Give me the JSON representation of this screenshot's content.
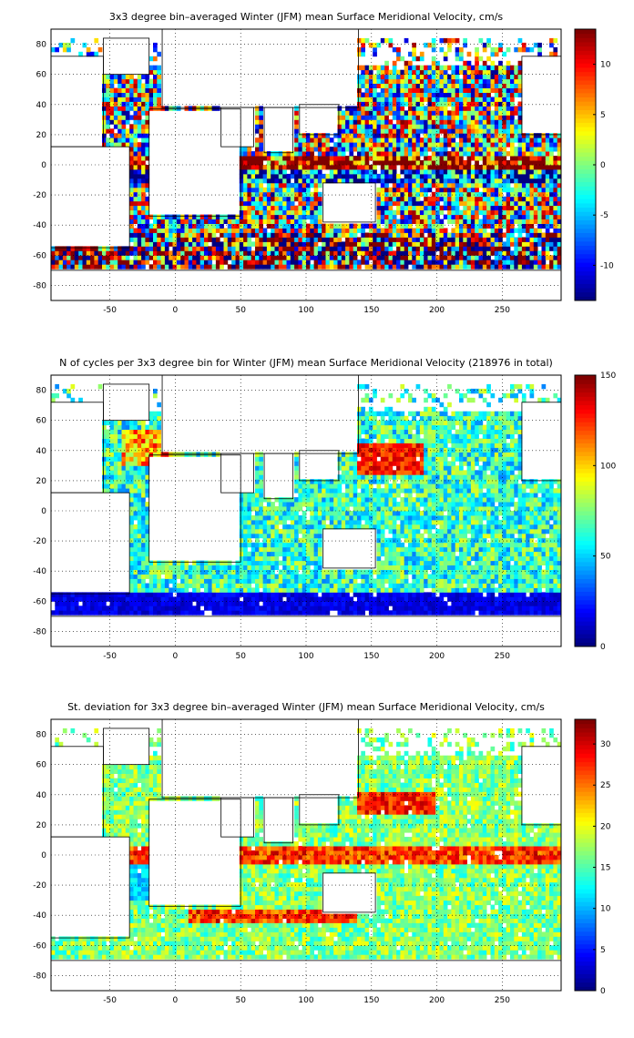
{
  "chart_data": [
    {
      "type": "heatmap",
      "title": "3x3 degree bin–averaged Winter (JFM) mean Surface Meridional Velocity, cm/s",
      "xlim": [
        -95,
        295
      ],
      "ylim": [
        -90,
        90
      ],
      "xticks": [
        -50,
        0,
        50,
        100,
        150,
        200,
        250
      ],
      "yticks": [
        -80,
        -60,
        -40,
        -20,
        0,
        20,
        40,
        60,
        80
      ],
      "colorbar": {
        "range": [
          -13.5,
          13.5
        ],
        "ticks": [
          -10,
          -5,
          0,
          5,
          10
        ],
        "colormap": "jet"
      },
      "grid": true,
      "bin_degrees": 3
    },
    {
      "type": "heatmap",
      "title": "N of cycles per 3x3 degree bin for Winter (JFM) mean Surface Meridional Velocity (218976 in total)",
      "xlim": [
        -95,
        295
      ],
      "ylim": [
        -90,
        90
      ],
      "xticks": [
        -50,
        0,
        50,
        100,
        150,
        200,
        250
      ],
      "yticks": [
        -80,
        -60,
        -40,
        -20,
        0,
        20,
        40,
        60,
        80
      ],
      "colorbar": {
        "range": [
          0,
          150
        ],
        "ticks": [
          0,
          50,
          100,
          150
        ],
        "colormap": "jet"
      },
      "grid": true,
      "bin_degrees": 3
    },
    {
      "type": "heatmap",
      "title": "St. deviation for 3x3 degree bin–averaged Winter (JFM) mean Surface Meridional Velocity, cm/s",
      "xlim": [
        -95,
        295
      ],
      "ylim": [
        -90,
        90
      ],
      "xticks": [
        -50,
        0,
        50,
        100,
        150,
        200,
        250
      ],
      "yticks": [
        -80,
        -60,
        -40,
        -20,
        0,
        20,
        40,
        60,
        80
      ],
      "colorbar": {
        "range": [
          0,
          33
        ],
        "ticks": [
          0,
          5,
          10,
          15,
          20,
          25,
          30
        ],
        "colormap": "jet"
      },
      "grid": true,
      "bin_degrees": 3
    }
  ]
}
